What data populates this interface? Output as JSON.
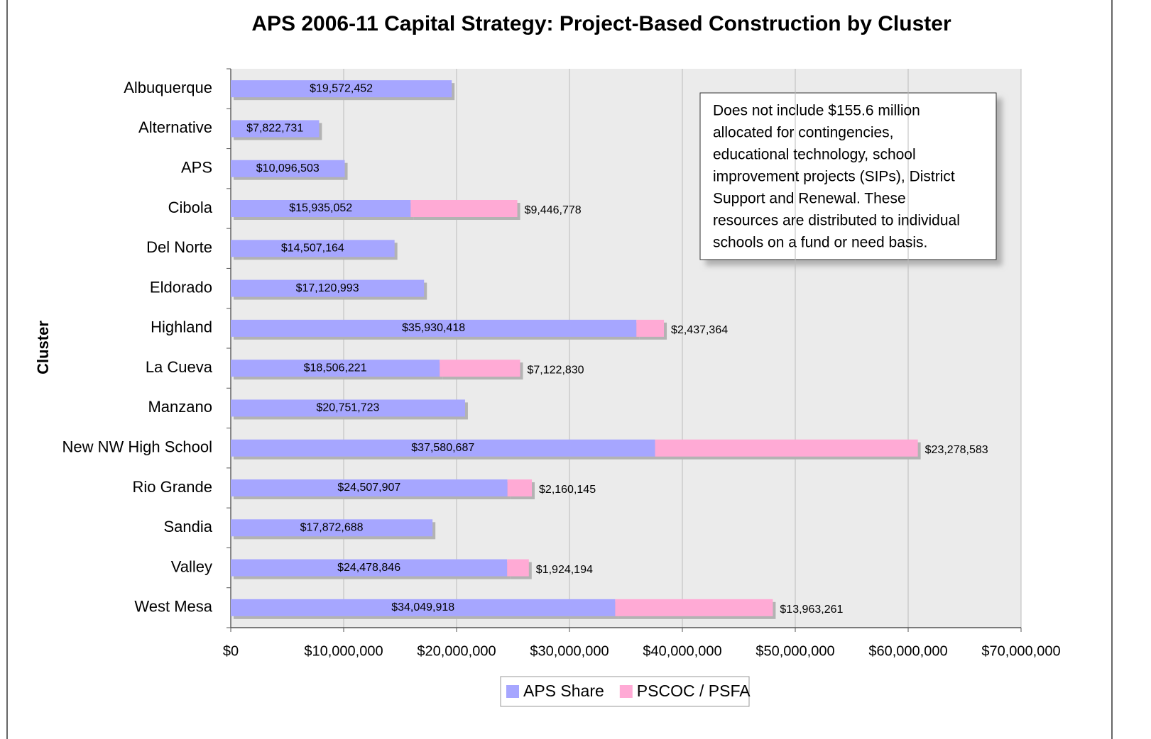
{
  "chart_data": {
    "type": "stacked-bar-horizontal",
    "title": "APS 2006-11 Capital Strategy: Project-Based Construction by Cluster",
    "y_axis_label": "Cluster",
    "categories": [
      "Albuquerque",
      "Alternative",
      "APS",
      "Cibola",
      "Del Norte",
      "Eldorado",
      "Highland",
      "La Cueva",
      "Manzano",
      "New NW High School",
      "Rio Grande",
      "Sandia",
      "Valley",
      "West Mesa"
    ],
    "series": [
      {
        "name": "APS Share",
        "color": "#a6a6ff",
        "values": [
          19572452,
          7822731,
          10096503,
          15935052,
          14507164,
          17120993,
          35930418,
          18506221,
          20751723,
          37580687,
          24507907,
          17872688,
          24478846,
          34049918
        ],
        "value_labels": [
          "$19,572,452",
          "$7,822,731",
          "$10,096,503",
          "$15,935,052",
          "$14,507,164",
          "$17,120,993",
          "$35,930,418",
          "$18,506,221",
          "$20,751,723",
          "$37,580,687",
          "$24,507,907",
          "$17,872,688",
          "$24,478,846",
          "$34,049,918"
        ]
      },
      {
        "name": "PSCOC / PSFA",
        "color": "#ffaad5",
        "values": [
          null,
          null,
          null,
          9446778,
          null,
          null,
          2437364,
          7122830,
          null,
          23278583,
          2160145,
          null,
          1924194,
          13963261
        ],
        "value_labels": [
          null,
          null,
          null,
          "$9,446,778",
          null,
          null,
          "$2,437,364",
          "$7,122,830",
          null,
          "$23,278,583",
          "$2,160,145",
          null,
          "$1,924,194",
          "$13,963,261"
        ]
      }
    ],
    "xlim": [
      0,
      70000000
    ],
    "xticks": [
      {
        "value": 0,
        "label": "$0"
      },
      {
        "value": 10000000,
        "label": "$10,000,000"
      },
      {
        "value": 20000000,
        "label": "$20,000,000"
      },
      {
        "value": 30000000,
        "label": "$30,000,000"
      },
      {
        "value": 40000000,
        "label": "$40,000,000"
      },
      {
        "value": 50000000,
        "label": "$50,000,000"
      },
      {
        "value": 60000000,
        "label": "$60,000,000"
      },
      {
        "value": 70000000,
        "label": "$70,000,000"
      }
    ],
    "grid": true,
    "legend": "bottom",
    "annotation": [
      "Does not include $155.6 million",
      "allocated for contingencies,",
      "educational technology, school",
      "improvement projects (SIPs), District",
      "Support and Renewal.  These",
      "resources are distributed to individual",
      "schools on a fund or need basis."
    ]
  }
}
